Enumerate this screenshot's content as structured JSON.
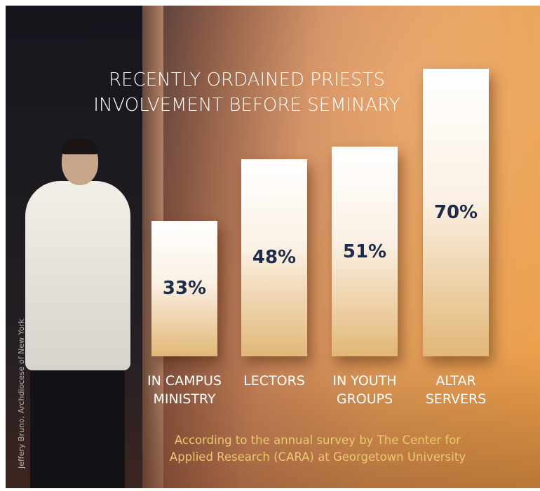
{
  "chart_data": {
    "type": "bar",
    "title": "RECENTLY ORDAINED PRIESTS\nINVOLVEMENT BEFORE SEMINARY",
    "categories": [
      "IN CAMPUS\nMINISTRY",
      "LECTORS",
      "IN YOUTH\nGROUPS",
      "ALTAR\nSERVERS"
    ],
    "values": [
      33,
      48,
      51,
      70
    ],
    "value_labels": [
      "33%",
      "48%",
      "51%",
      "70%"
    ],
    "note": "According to the annual survey by The Center for\nApplied Research (CARA) at Georgetown University",
    "credit": "Jeffery Bruno, Archdiocese of New York"
  }
}
